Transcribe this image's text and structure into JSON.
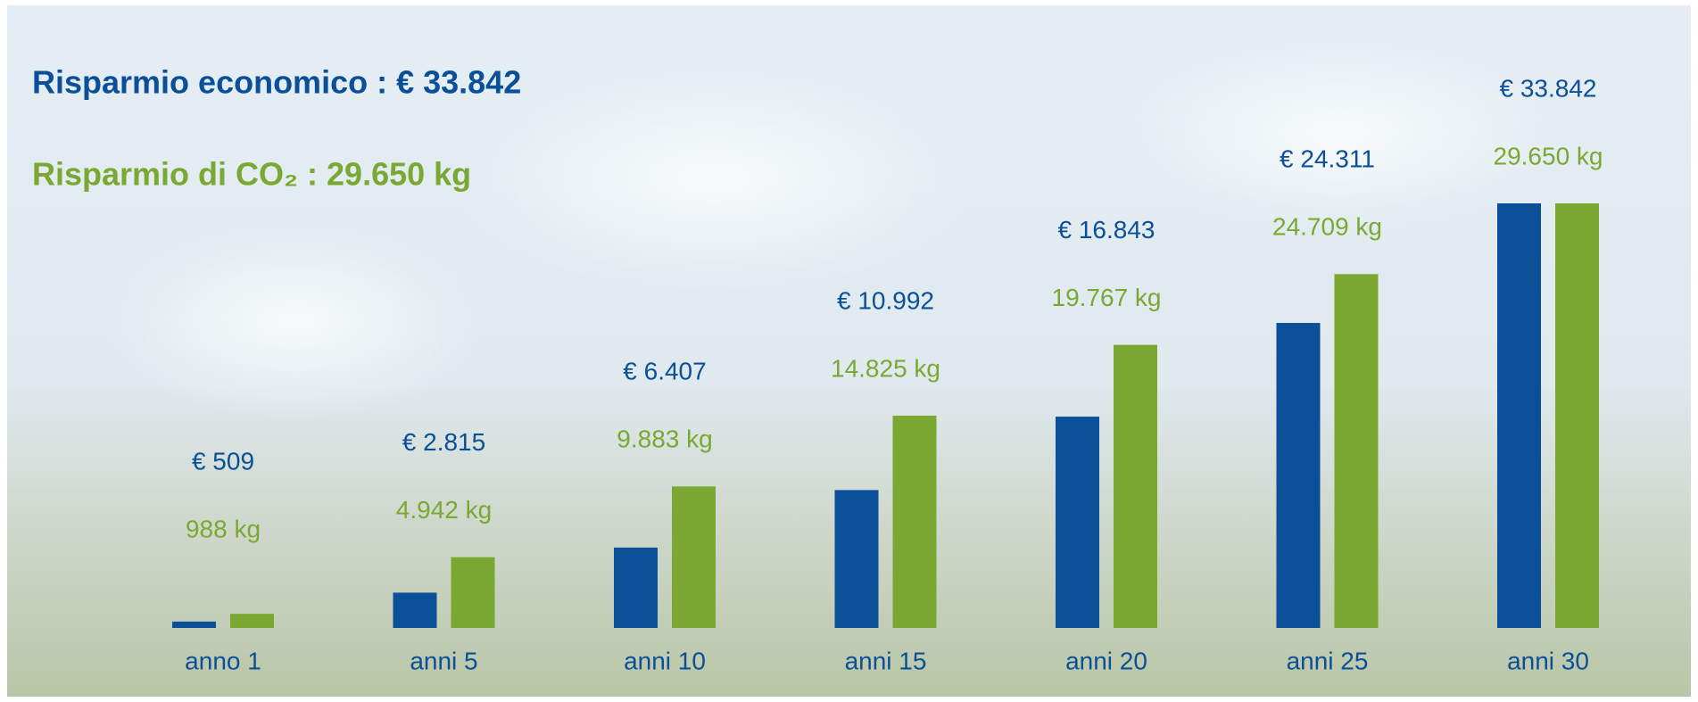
{
  "chart_data": {
    "type": "bar",
    "title": "Risparmio economico : € 33.842",
    "subtitle": "Risparmio di CO₂ : 29.650 kg",
    "categories": [
      "anno 1",
      "anni 5",
      "anni 10",
      "anni 15",
      "anni 20",
      "anni 25",
      "anni 30"
    ],
    "series": [
      {
        "color": "#0a4f97",
        "values": [
          509,
          2815,
          6407,
          10992,
          16843,
          24311,
          33842
        ],
        "value_labels": [
          "€ 509",
          "€ 2.815",
          "€ 6.407",
          "€ 10.992",
          "€ 16.843",
          "€ 24.311",
          "€ 33.842"
        ]
      },
      {
        "color": "#7aa832",
        "values": [
          988,
          4942,
          9883,
          14825,
          19767,
          24709,
          29650
        ],
        "value_labels": [
          "988 kg",
          "4.942 kg",
          "9.883 kg",
          "14.825 kg",
          "19.767 kg",
          "24.709 kg",
          "29.650 kg"
        ]
      }
    ]
  }
}
